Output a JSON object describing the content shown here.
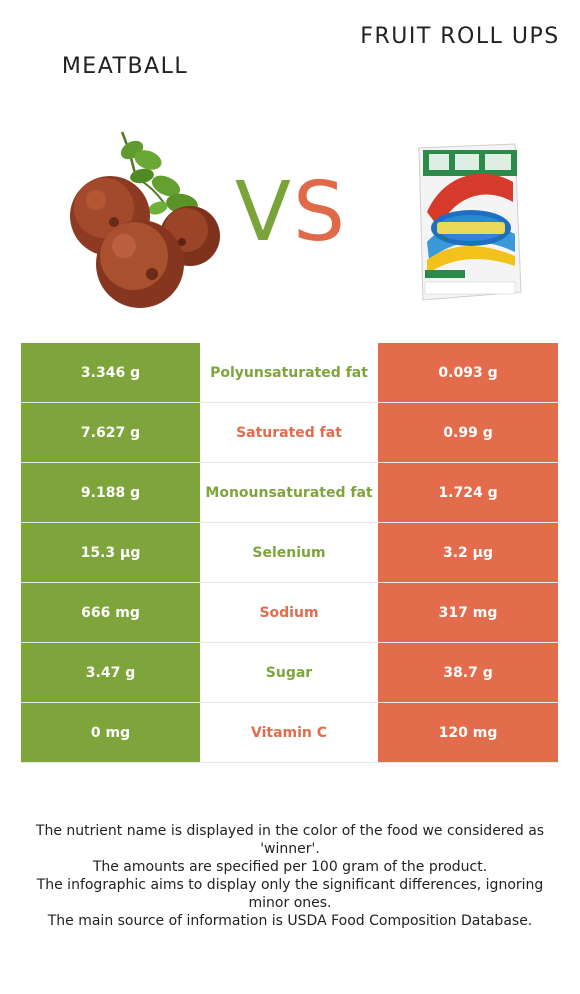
{
  "foods": {
    "left": {
      "name": "MEATBALL",
      "color": "#7da53b"
    },
    "right": {
      "name": "FRUIT ROLL UPS",
      "color": "#e36c4c"
    }
  },
  "vs": {
    "v": "V",
    "s": "S"
  },
  "rows": [
    {
      "left": "3.346 g",
      "nutrient": "Polyunsaturated fat",
      "right": "0.093 g",
      "winner": "left"
    },
    {
      "left": "7.627 g",
      "nutrient": "Saturated fat",
      "right": "0.99 g",
      "winner": "right"
    },
    {
      "left": "9.188 g",
      "nutrient": "Monounsaturated fat",
      "right": "1.724 g",
      "winner": "left"
    },
    {
      "left": "15.3 µg",
      "nutrient": "Selenium",
      "right": "3.2 µg",
      "winner": "left"
    },
    {
      "left": "666 mg",
      "nutrient": "Sodium",
      "right": "317 mg",
      "winner": "right"
    },
    {
      "left": "3.47 g",
      "nutrient": "Sugar",
      "right": "38.7 g",
      "winner": "left"
    },
    {
      "left": "0 mg",
      "nutrient": "Vitamin C",
      "right": "120 mg",
      "winner": "right"
    }
  ],
  "footer": [
    "The nutrient name is displayed in the color of the food we considered as 'winner'.",
    "The amounts are specified per 100 gram of the product.",
    "The infographic aims to display only the significant differences, ignoring minor ones.",
    "The main source of information is USDA Food Composition Database."
  ]
}
